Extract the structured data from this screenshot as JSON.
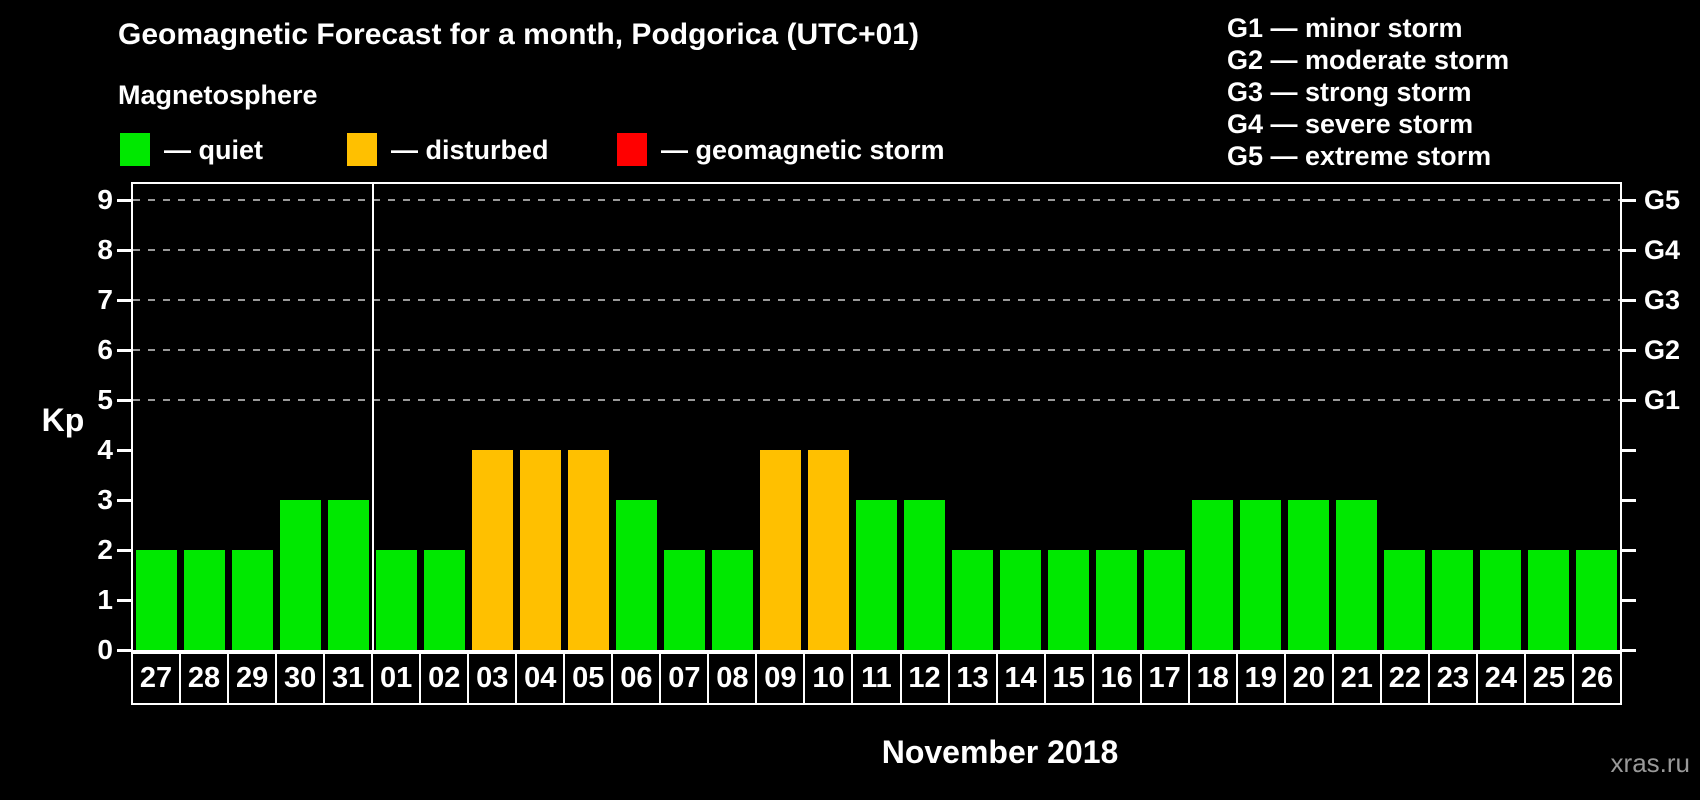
{
  "header": {
    "title": "Geomagnetic Forecast for a month, Podgorica (UTC+01)",
    "subtitle": "Magnetosphere",
    "legend": [
      {
        "key": "quiet",
        "label": "— quiet",
        "color": "#00e800"
      },
      {
        "key": "disturbed",
        "label": "— disturbed",
        "color": "#ffc000"
      },
      {
        "key": "storm",
        "label": "— geomagnetic storm",
        "color": "#ff0000"
      }
    ],
    "g_scale": [
      {
        "text": "G1 — minor storm"
      },
      {
        "text": "G2 — moderate storm"
      },
      {
        "text": "G3 — strong storm"
      },
      {
        "text": "G4 — severe storm"
      },
      {
        "text": "G5 — extreme storm"
      }
    ]
  },
  "chart_data": {
    "type": "bar",
    "title": "Geomagnetic Forecast for a month, Podgorica (UTC+01)",
    "ylabel": "Kp",
    "xlabel": "November 2018",
    "ylim": [
      0,
      9.4
    ],
    "yticks": [
      0,
      1,
      2,
      3,
      4,
      5,
      6,
      7,
      8,
      9
    ],
    "grid_levels": [
      5,
      6,
      7,
      8,
      9
    ],
    "right_axis": [
      {
        "kp": 5,
        "label": "G1"
      },
      {
        "kp": 6,
        "label": "G2"
      },
      {
        "kp": 7,
        "label": "G3"
      },
      {
        "kp": 8,
        "label": "G4"
      },
      {
        "kp": 9,
        "label": "G5"
      }
    ],
    "month_boundary_after": "31",
    "status_colors": {
      "quiet": "#00e800",
      "disturbed": "#ffc000",
      "storm": "#ff0000"
    },
    "days": [
      {
        "day": "27",
        "kp": 2,
        "status": "quiet"
      },
      {
        "day": "28",
        "kp": 2,
        "status": "quiet"
      },
      {
        "day": "29",
        "kp": 2,
        "status": "quiet"
      },
      {
        "day": "30",
        "kp": 3,
        "status": "quiet"
      },
      {
        "day": "31",
        "kp": 3,
        "status": "quiet"
      },
      {
        "day": "01",
        "kp": 2,
        "status": "quiet"
      },
      {
        "day": "02",
        "kp": 2,
        "status": "quiet"
      },
      {
        "day": "03",
        "kp": 4,
        "status": "disturbed"
      },
      {
        "day": "04",
        "kp": 4,
        "status": "disturbed"
      },
      {
        "day": "05",
        "kp": 4,
        "status": "disturbed"
      },
      {
        "day": "06",
        "kp": 3,
        "status": "quiet"
      },
      {
        "day": "07",
        "kp": 2,
        "status": "quiet"
      },
      {
        "day": "08",
        "kp": 2,
        "status": "quiet"
      },
      {
        "day": "09",
        "kp": 4,
        "status": "disturbed"
      },
      {
        "day": "10",
        "kp": 4,
        "status": "disturbed"
      },
      {
        "day": "11",
        "kp": 3,
        "status": "quiet"
      },
      {
        "day": "12",
        "kp": 3,
        "status": "quiet"
      },
      {
        "day": "13",
        "kp": 2,
        "status": "quiet"
      },
      {
        "day": "14",
        "kp": 2,
        "status": "quiet"
      },
      {
        "day": "15",
        "kp": 2,
        "status": "quiet"
      },
      {
        "day": "16",
        "kp": 2,
        "status": "quiet"
      },
      {
        "day": "17",
        "kp": 2,
        "status": "quiet"
      },
      {
        "day": "18",
        "kp": 3,
        "status": "quiet"
      },
      {
        "day": "19",
        "kp": 3,
        "status": "quiet"
      },
      {
        "day": "20",
        "kp": 3,
        "status": "quiet"
      },
      {
        "day": "21",
        "kp": 3,
        "status": "quiet"
      },
      {
        "day": "22",
        "kp": 2,
        "status": "quiet"
      },
      {
        "day": "23",
        "kp": 2,
        "status": "quiet"
      },
      {
        "day": "24",
        "kp": 2,
        "status": "quiet"
      },
      {
        "day": "25",
        "kp": 2,
        "status": "quiet"
      },
      {
        "day": "26",
        "kp": 2,
        "status": "quiet"
      }
    ]
  },
  "footer": {
    "xaxis_title": "November 2018",
    "watermark": "xras.ru"
  }
}
